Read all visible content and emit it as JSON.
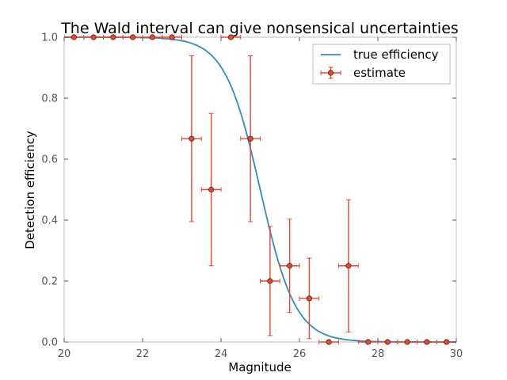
{
  "chart_data": {
    "type": "scatter",
    "title": "The Wald interval can give nonsensical uncertainties",
    "xlabel": "Magnitude",
    "ylabel": "Detection efficiency",
    "xlim": [
      20,
      30
    ],
    "ylim": [
      0,
      1
    ],
    "xticks": [
      "20",
      "22",
      "24",
      "26",
      "28",
      "30"
    ],
    "yticks": [
      "0.0",
      "0.2",
      "0.4",
      "0.6",
      "0.8",
      "1.0"
    ],
    "grid": false,
    "legend_position": "top-right",
    "legend": [
      "true efficiency",
      "estimate"
    ],
    "colors": {
      "curve": "#348ABD",
      "estimate": "#E24A33",
      "marker_edge": "#5a1a10",
      "frame": "#bcbcbc"
    },
    "curve": {
      "name": "true efficiency",
      "center": 25,
      "scale": 0.45
    },
    "series": [
      {
        "name": "estimate",
        "x_err": 0.25,
        "points": [
          {
            "x": 20.25,
            "y": 1.0,
            "lo": 0.0,
            "hi": 0.0
          },
          {
            "x": 20.75,
            "y": 1.0,
            "lo": 0.0,
            "hi": 0.0
          },
          {
            "x": 21.25,
            "y": 1.0,
            "lo": 0.0,
            "hi": 0.0
          },
          {
            "x": 21.75,
            "y": 1.0,
            "lo": 0.0,
            "hi": 0.0
          },
          {
            "x": 22.25,
            "y": 1.0,
            "lo": 0.0,
            "hi": 0.0
          },
          {
            "x": 22.75,
            "y": 1.0,
            "lo": 0.0,
            "hi": 0.0
          },
          {
            "x": 23.25,
            "y": 0.667,
            "lo": 0.272,
            "hi": 0.272
          },
          {
            "x": 23.75,
            "y": 0.5,
            "lo": 0.25,
            "hi": 0.25
          },
          {
            "x": 24.25,
            "y": 1.0,
            "lo": 0.0,
            "hi": 0.0
          },
          {
            "x": 24.75,
            "y": 0.667,
            "lo": 0.272,
            "hi": 0.272
          },
          {
            "x": 25.25,
            "y": 0.2,
            "lo": 0.179,
            "hi": 0.179
          },
          {
            "x": 25.75,
            "y": 0.25,
            "lo": 0.153,
            "hi": 0.153
          },
          {
            "x": 26.25,
            "y": 0.143,
            "lo": 0.132,
            "hi": 0.132
          },
          {
            "x": 26.75,
            "y": 0.0,
            "lo": 0.0,
            "hi": 0.0
          },
          {
            "x": 27.25,
            "y": 0.25,
            "lo": 0.217,
            "hi": 0.217
          },
          {
            "x": 27.75,
            "y": 0.0,
            "lo": 0.0,
            "hi": 0.0
          },
          {
            "x": 28.25,
            "y": 0.0,
            "lo": 0.0,
            "hi": 0.0
          },
          {
            "x": 28.75,
            "y": 0.0,
            "lo": 0.0,
            "hi": 0.0
          },
          {
            "x": 29.25,
            "y": 0.0,
            "lo": 0.0,
            "hi": 0.0
          },
          {
            "x": 29.75,
            "y": 0.0,
            "lo": 0.0,
            "hi": 0.0
          }
        ]
      }
    ]
  }
}
